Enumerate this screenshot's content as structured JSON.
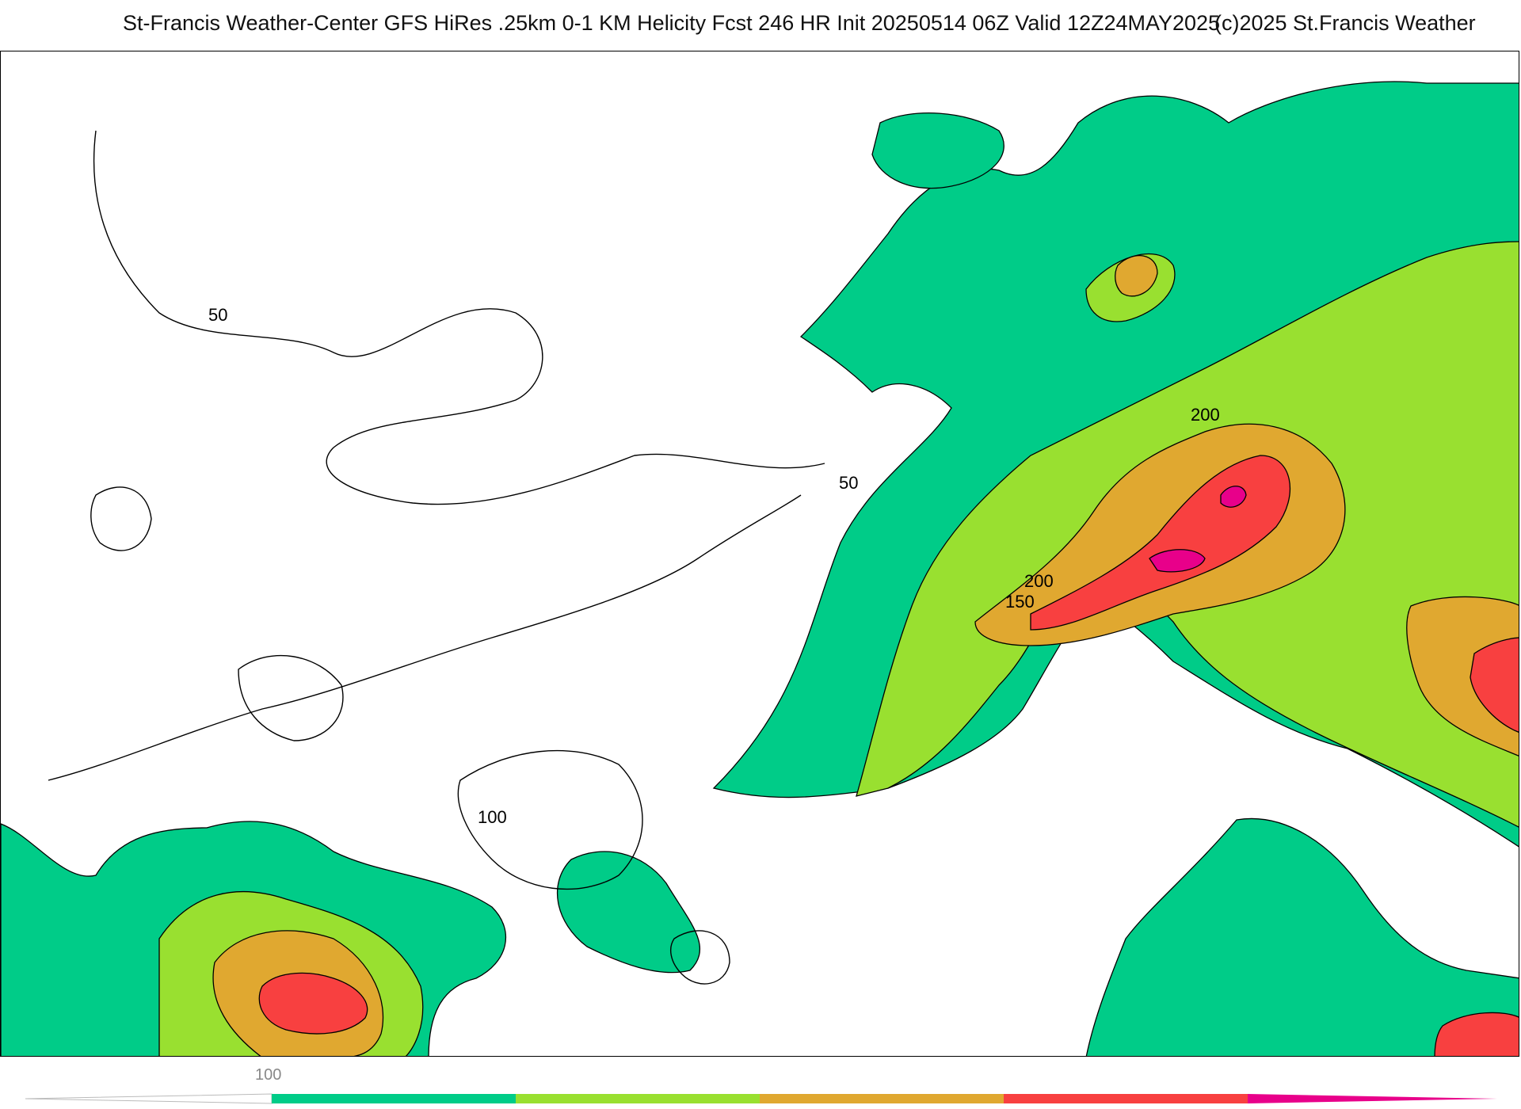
{
  "header": {
    "title": "St-Francis Weather-Center GFS HiRes .25km 0-1 KM Helicity Fcst 246 HR Init 20250514 06Z  Valid 12Z24MAY2025",
    "copyright": "(c)2025 St.Francis Weather"
  },
  "map": {
    "contour_labels": [
      "50",
      "50",
      "100",
      "150",
      "200",
      "200"
    ],
    "fill_colors": {
      "level_100": "#00cc88",
      "level_150": "#99e030",
      "level_200": "#e0a830",
      "level_250": "#f84040",
      "level_300": "#e8008a"
    }
  },
  "colorbar": {
    "tick_labels": [
      "100"
    ],
    "colors": [
      "#00cc88",
      "#99e030",
      "#e0a830",
      "#f84040",
      "#e8008a"
    ]
  }
}
